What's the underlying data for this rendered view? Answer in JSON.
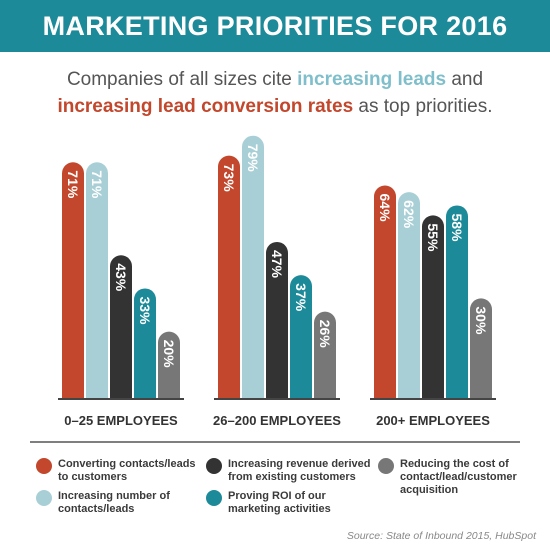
{
  "header": {
    "title": "MARKETING PRIORITIES FOR 2016"
  },
  "subtitle": {
    "part1": "Companies of all sizes cite ",
    "hl1": "increasing leads",
    "part2": " and",
    "hl2": "increasing lead conversion rates",
    "part3": " as top priorities."
  },
  "colors": {
    "header": "#1d8a99",
    "series": [
      "#c2472c",
      "#a9cfd6",
      "#333333",
      "#1d8a99",
      "#777777"
    ]
  },
  "chart_data": {
    "type": "bar",
    "categories": [
      "0–25 EMPLOYEES",
      "26–200 EMPLOYEES",
      "200+ EMPLOYEES"
    ],
    "series": [
      {
        "name": "Converting contacts/leads to customers",
        "values": [
          71,
          73,
          64
        ],
        "labels": [
          "71%",
          "73%",
          "64%"
        ]
      },
      {
        "name": "Increasing number of contacts/leads",
        "values": [
          71,
          79,
          62
        ],
        "labels": [
          "71%",
          "79%",
          "62%"
        ]
      },
      {
        "name": "Increasing revenue derived from existing customers",
        "values": [
          43,
          47,
          55
        ],
        "labels": [
          "43%",
          "47%",
          "55%"
        ]
      },
      {
        "name": "Proving ROI of our marketing activities",
        "values": [
          33,
          37,
          58
        ],
        "labels": [
          "33%",
          "37%",
          "58%"
        ]
      },
      {
        "name": "Reducing the cost of contact/lead/customer acquisition",
        "values": [
          20,
          26,
          30
        ],
        "labels": [
          "20%",
          "26%",
          "30%"
        ]
      }
    ],
    "ylim": [
      0,
      100
    ],
    "grid": false,
    "legend": "bottom"
  },
  "legend": {
    "items": [
      {
        "line1": "Converting contacts/leads",
        "line2": "to customers",
        "line3": ""
      },
      {
        "line1": "Increasing number of",
        "line2": "contacts/leads",
        "line3": ""
      },
      {
        "line1": "Increasing revenue derived",
        "line2": "from existing customers",
        "line3": ""
      },
      {
        "line1": "Proving ROI of our",
        "line2": "marketing activities",
        "line3": ""
      },
      {
        "line1": "Reducing the cost of",
        "line2": "contact/lead/customer",
        "line3": "acquisition"
      }
    ]
  },
  "source": "Source: State of Inbound 2015, HubSpot"
}
